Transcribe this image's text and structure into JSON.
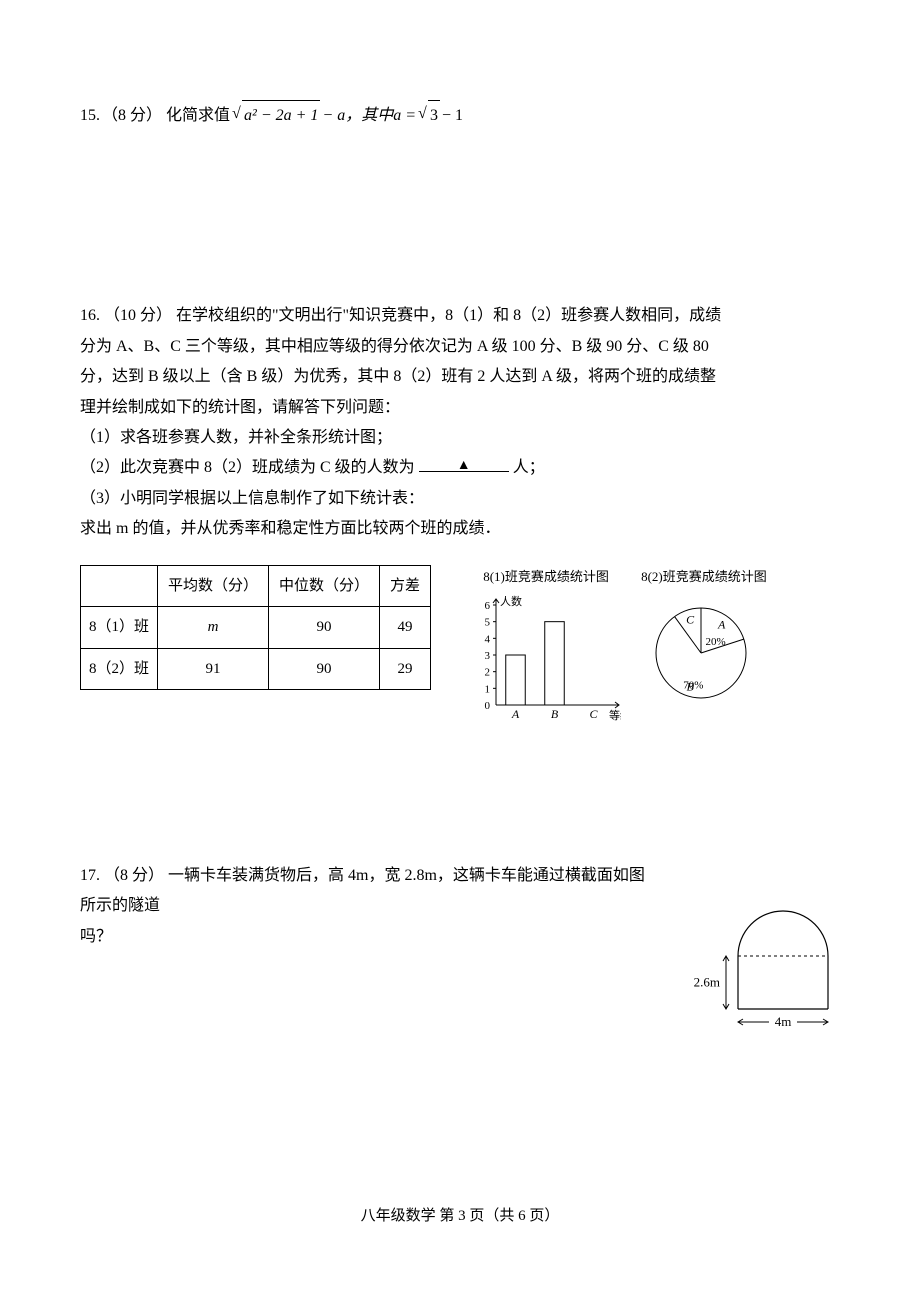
{
  "q15": {
    "number": "15.",
    "points": "（8 分）",
    "pre_text": "化简求值",
    "radicand": "a² − 2a + 1",
    "mid_text": " − a，其中 ",
    "rhs_a": "a = ",
    "rhs_sqrt": "3",
    "rhs_tail": " − 1"
  },
  "q16": {
    "number": "16.",
    "points": "（10 分）",
    "para1_a": "在学校组织的\"文明出行\"知识竞赛中，8（1）和 8（2）班参赛人数相同，成绩",
    "para1_b": "分为 A、B、C 三个等级，其中相应等级的得分依次记为 A 级 100 分、B 级 90 分、C 级 80",
    "para1_c": "分，达到 B 级以上（含 B 级）为优秀，其中 8（2）班有 2 人达到 A 级，将两个班的成绩整",
    "para1_d": "理并绘制成如下的统计图，请解答下列问题：",
    "item1": "（1）求各班参赛人数，并补全条形统计图；",
    "item2_a": "（2）此次竞赛中 8（2）班成绩为 C 级的人数为",
    "item2_b": "人；",
    "blank_marker": "▲",
    "item3": "（3）小明同学根据以上信息制作了如下统计表：",
    "item3_b": "求出 m 的值，并从优秀率和稳定性方面比较两个班的成绩．",
    "table": {
      "headers": [
        "",
        "平均数（分）",
        "中位数（分）",
        "方差"
      ],
      "rows": [
        {
          "label": "8（1）班",
          "cells": [
            "m",
            "90",
            "49"
          ]
        },
        {
          "label": "8（2）班",
          "cells": [
            "91",
            "90",
            "29"
          ]
        }
      ]
    },
    "bar_chart": {
      "title": "8(1)班竞赛成绩统计图",
      "y_label": "人数",
      "y_ticks": [
        "0",
        "1",
        "2",
        "3",
        "4",
        "5",
        "6"
      ],
      "x_label": "等级",
      "categories": [
        "A",
        "B",
        "C"
      ],
      "values": [
        3,
        5,
        null
      ],
      "bar_color": "#ffffff",
      "axis_color": "#000000",
      "width": 150,
      "height": 130
    },
    "pie_chart": {
      "title": "8(2)班竞赛成绩统计图",
      "slices": [
        {
          "label": "A",
          "pct_label": "20%",
          "fraction": 0.2,
          "color": "#ffffff"
        },
        {
          "label": "B",
          "pct_label": "70%",
          "fraction": 0.7,
          "color": "#ffffff"
        },
        {
          "label": "C",
          "pct_label": "",
          "fraction": 0.1,
          "color": "#ffffff"
        }
      ],
      "stroke": "#000000",
      "radius": 45
    }
  },
  "q17": {
    "number": "17.",
    "points": "（8 分）",
    "text_a": "一辆卡车装满货物后，高 4m，宽 2.8m，这辆卡车能通过横截面如图所示的隧道",
    "text_b": "吗？",
    "tunnel": {
      "rect_h_label": "2.6m",
      "rect_w_label": "4m",
      "stroke": "#000000",
      "dash_color": "#000000"
    }
  },
  "footer": "八年级数学  第 3 页（共 6 页）"
}
